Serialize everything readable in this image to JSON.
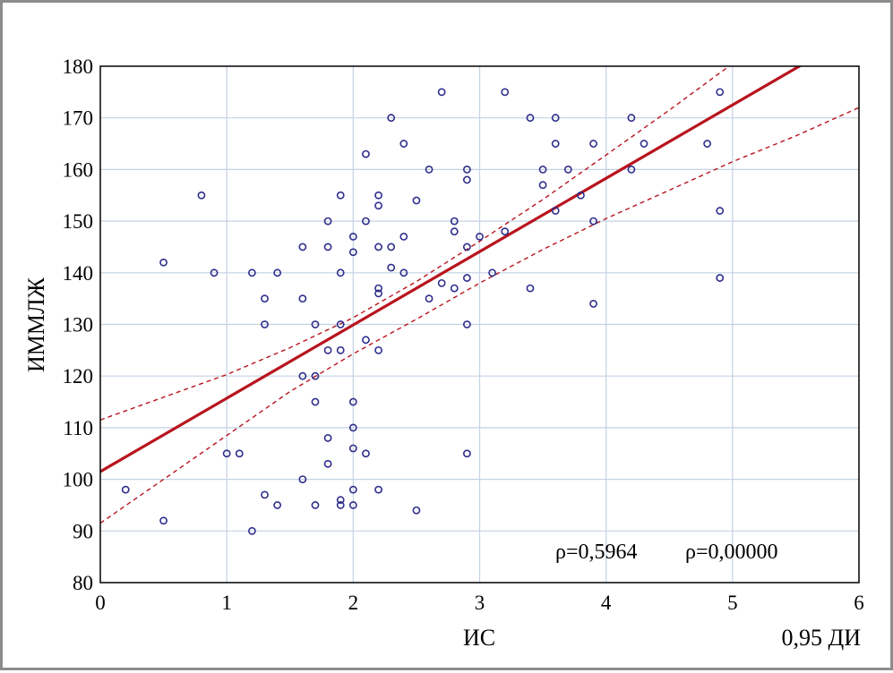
{
  "chart_data": {
    "type": "scatter",
    "title": "",
    "xlabel": "ИС",
    "ylabel": "ИММЛЖ",
    "xlim": [
      0,
      6
    ],
    "ylim": [
      80,
      180
    ],
    "x_ticks": [
      "0",
      "1",
      "2",
      "3",
      "4",
      "5",
      "6"
    ],
    "y_ticks": [
      "80",
      "90",
      "100",
      "110",
      "120",
      "130",
      "140",
      "150",
      "160",
      "170",
      "180"
    ],
    "grid": true,
    "colors": {
      "points": "#2e2e8c",
      "regression": "#b8141e",
      "grid": "#c4d2e3",
      "frame": "#8c8c8c"
    },
    "regression": {
      "intercept": 101.5,
      "slope": 14.2,
      "style": "solid"
    },
    "confidence_band": {
      "label": "0,95 ДИ",
      "level": 0.95,
      "style": "dashed",
      "upper": [
        {
          "x": 0,
          "y": 111.5
        },
        {
          "x": 1,
          "y": 120.3
        },
        {
          "x": 1.5,
          "y": 125.5
        },
        {
          "x": 2,
          "y": 131.3
        },
        {
          "x": 2.5,
          "y": 138.3
        },
        {
          "x": 3,
          "y": 146.1
        },
        {
          "x": 3.5,
          "y": 154.2
        },
        {
          "x": 4,
          "y": 162.8
        },
        {
          "x": 4.5,
          "y": 171.5
        },
        {
          "x": 5,
          "y": 180.5
        }
      ],
      "lower": [
        {
          "x": 0,
          "y": 91.5
        },
        {
          "x": 1,
          "y": 108.5
        },
        {
          "x": 1.5,
          "y": 117.0
        },
        {
          "x": 2,
          "y": 124.3
        },
        {
          "x": 2.5,
          "y": 131.0
        },
        {
          "x": 3,
          "y": 138.0
        },
        {
          "x": 3.5,
          "y": 144.5
        },
        {
          "x": 4,
          "y": 150.5
        },
        {
          "x": 4.5,
          "y": 156.0
        },
        {
          "x": 5,
          "y": 161.5
        },
        {
          "x": 5.5,
          "y": 166.5
        },
        {
          "x": 6,
          "y": 172.0
        }
      ]
    },
    "annotations": {
      "rho": "ρ=0,5964",
      "p": "ρ=0,00000"
    },
    "series": [
      {
        "points": [
          {
            "x": 0.2,
            "y": 98
          },
          {
            "x": 0.5,
            "y": 142
          },
          {
            "x": 0.5,
            "y": 92
          },
          {
            "x": 0.8,
            "y": 155
          },
          {
            "x": 0.9,
            "y": 140
          },
          {
            "x": 1.0,
            "y": 105
          },
          {
            "x": 1.1,
            "y": 105
          },
          {
            "x": 1.2,
            "y": 140
          },
          {
            "x": 1.2,
            "y": 90
          },
          {
            "x": 1.3,
            "y": 135
          },
          {
            "x": 1.3,
            "y": 130
          },
          {
            "x": 1.3,
            "y": 97
          },
          {
            "x": 1.4,
            "y": 140
          },
          {
            "x": 1.4,
            "y": 95
          },
          {
            "x": 1.6,
            "y": 145
          },
          {
            "x": 1.6,
            "y": 135
          },
          {
            "x": 1.6,
            "y": 120
          },
          {
            "x": 1.6,
            "y": 100
          },
          {
            "x": 1.7,
            "y": 130
          },
          {
            "x": 1.7,
            "y": 120
          },
          {
            "x": 1.7,
            "y": 115
          },
          {
            "x": 1.7,
            "y": 95
          },
          {
            "x": 1.8,
            "y": 150
          },
          {
            "x": 1.8,
            "y": 145
          },
          {
            "x": 1.8,
            "y": 125
          },
          {
            "x": 1.8,
            "y": 108
          },
          {
            "x": 1.8,
            "y": 103
          },
          {
            "x": 1.9,
            "y": 155
          },
          {
            "x": 1.9,
            "y": 140
          },
          {
            "x": 1.9,
            "y": 130
          },
          {
            "x": 1.9,
            "y": 125
          },
          {
            "x": 1.9,
            "y": 96
          },
          {
            "x": 1.9,
            "y": 95
          },
          {
            "x": 2.0,
            "y": 147
          },
          {
            "x": 2.0,
            "y": 144
          },
          {
            "x": 2.0,
            "y": 115
          },
          {
            "x": 2.0,
            "y": 110
          },
          {
            "x": 2.0,
            "y": 106
          },
          {
            "x": 2.0,
            "y": 98
          },
          {
            "x": 2.0,
            "y": 95
          },
          {
            "x": 2.1,
            "y": 163
          },
          {
            "x": 2.1,
            "y": 150
          },
          {
            "x": 2.1,
            "y": 127
          },
          {
            "x": 2.1,
            "y": 105
          },
          {
            "x": 2.2,
            "y": 155
          },
          {
            "x": 2.2,
            "y": 153
          },
          {
            "x": 2.2,
            "y": 145
          },
          {
            "x": 2.2,
            "y": 137
          },
          {
            "x": 2.2,
            "y": 136
          },
          {
            "x": 2.2,
            "y": 125
          },
          {
            "x": 2.2,
            "y": 98
          },
          {
            "x": 2.3,
            "y": 170
          },
          {
            "x": 2.3,
            "y": 145
          },
          {
            "x": 2.3,
            "y": 141
          },
          {
            "x": 2.4,
            "y": 165
          },
          {
            "x": 2.4,
            "y": 147
          },
          {
            "x": 2.4,
            "y": 140
          },
          {
            "x": 2.5,
            "y": 154
          },
          {
            "x": 2.5,
            "y": 94
          },
          {
            "x": 2.6,
            "y": 160
          },
          {
            "x": 2.6,
            "y": 135
          },
          {
            "x": 2.7,
            "y": 175
          },
          {
            "x": 2.7,
            "y": 138
          },
          {
            "x": 2.8,
            "y": 150
          },
          {
            "x": 2.8,
            "y": 148
          },
          {
            "x": 2.8,
            "y": 137
          },
          {
            "x": 2.9,
            "y": 160
          },
          {
            "x": 2.9,
            "y": 158
          },
          {
            "x": 2.9,
            "y": 145
          },
          {
            "x": 2.9,
            "y": 139
          },
          {
            "x": 2.9,
            "y": 130
          },
          {
            "x": 2.9,
            "y": 105
          },
          {
            "x": 3.0,
            "y": 147
          },
          {
            "x": 3.1,
            "y": 140
          },
          {
            "x": 3.2,
            "y": 175
          },
          {
            "x": 3.2,
            "y": 148
          },
          {
            "x": 3.4,
            "y": 170
          },
          {
            "x": 3.4,
            "y": 137
          },
          {
            "x": 3.5,
            "y": 160
          },
          {
            "x": 3.5,
            "y": 157
          },
          {
            "x": 3.6,
            "y": 170
          },
          {
            "x": 3.6,
            "y": 165
          },
          {
            "x": 3.6,
            "y": 152
          },
          {
            "x": 3.7,
            "y": 160
          },
          {
            "x": 3.8,
            "y": 155
          },
          {
            "x": 3.9,
            "y": 165
          },
          {
            "x": 3.9,
            "y": 150
          },
          {
            "x": 3.9,
            "y": 134
          },
          {
            "x": 4.2,
            "y": 170
          },
          {
            "x": 4.2,
            "y": 160
          },
          {
            "x": 4.3,
            "y": 165
          },
          {
            "x": 4.8,
            "y": 165
          },
          {
            "x": 4.9,
            "y": 175
          },
          {
            "x": 4.9,
            "y": 152
          },
          {
            "x": 4.9,
            "y": 139
          }
        ]
      }
    ]
  }
}
